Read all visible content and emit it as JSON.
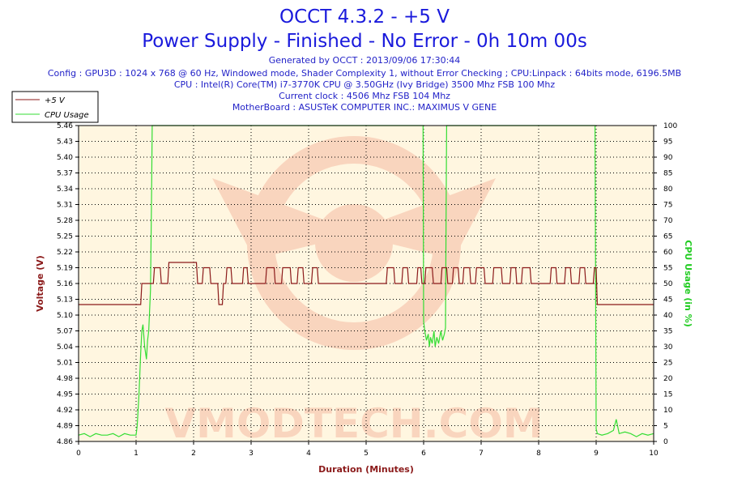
{
  "header": {
    "title": "OCCT 4.3.2 - +5 V",
    "subtitle": "Power Supply - Finished - No Error - 0h 10m 00s",
    "info_lines": [
      "Generated by OCCT : 2013/09/06 17:30:44",
      "Config : GPU3D : 1024 x 768 @ 60 Hz, Windowed mode, Shader Complexity 1, without Error Checking ; CPU:Linpack : 64bits mode, 6196.5MB",
      "CPU : Intel(R) Core(TM) i7-3770K CPU @ 3.50GHz (Ivy Bridge) 3500 Mhz FSB 100 Mhz",
      "Current clock : 4506 Mhz FSB 104 Mhz",
      "MotherBoard : ASUSTeK COMPUTER INC.: MAXIMUS V GENE"
    ]
  },
  "watermark": {
    "text": "VMODTECH.COM"
  },
  "colors": {
    "voltage": "#8b1a1a",
    "cpu": "#33dd33",
    "plot_bg": "#fff6e0",
    "title": "#1a1adc",
    "watermark": "#e8624a"
  },
  "chart_data": {
    "type": "line",
    "xlabel": "Duration (Minutes)",
    "ylabel": "Voltage (V)",
    "y2label": "CPU Usage (in %)",
    "xlim": [
      0,
      10
    ],
    "ylim": [
      4.86,
      5.46
    ],
    "y2lim": [
      0,
      100
    ],
    "x_ticks": [
      0,
      1,
      2,
      3,
      4,
      5,
      6,
      7,
      8,
      9,
      10
    ],
    "y_ticks": [
      "4.86",
      "4.89",
      "4.92",
      "4.95",
      "4.98",
      "5.01",
      "5.04",
      "5.07",
      "5.10",
      "5.13",
      "5.16",
      "5.19",
      "5.22",
      "5.25",
      "5.28",
      "5.31",
      "5.34",
      "5.37",
      "5.40",
      "5.43",
      "5.46"
    ],
    "y2_ticks": [
      0,
      5,
      10,
      15,
      20,
      25,
      30,
      35,
      40,
      45,
      50,
      55,
      60,
      65,
      70,
      75,
      80,
      85,
      90,
      95,
      100
    ],
    "grid": true,
    "legend_position": "top-left",
    "series": [
      {
        "name": "+5 V",
        "axis": "left",
        "x": [
          0,
          1.08,
          1.1,
          1.3,
          1.32,
          1.42,
          1.44,
          1.55,
          1.57,
          2.05,
          2.07,
          2.15,
          2.17,
          2.28,
          2.3,
          2.42,
          2.44,
          2.5,
          2.52,
          2.56,
          2.58,
          2.65,
          2.67,
          2.85,
          2.87,
          2.93,
          2.95,
          3.25,
          3.27,
          3.4,
          3.42,
          3.53,
          3.55,
          3.68,
          3.7,
          3.8,
          3.82,
          3.9,
          3.92,
          4.05,
          4.07,
          4.15,
          4.17,
          4.3,
          4.32,
          5.0,
          5.02,
          5.35,
          5.37,
          5.48,
          5.5,
          5.62,
          5.64,
          5.72,
          5.74,
          5.88,
          5.9,
          5.95,
          5.97,
          6.02,
          6.04,
          6.15,
          6.17,
          6.3,
          6.32,
          6.4,
          6.42,
          6.5,
          6.52,
          6.6,
          6.62,
          6.68,
          6.7,
          6.8,
          6.82,
          6.9,
          6.92,
          7.05,
          7.07,
          7.2,
          7.22,
          7.35,
          7.37,
          7.5,
          7.52,
          7.6,
          7.62,
          7.7,
          7.72,
          7.85,
          7.87,
          8.2,
          8.22,
          8.3,
          8.32,
          8.45,
          8.47,
          8.55,
          8.57,
          8.7,
          8.72,
          8.8,
          8.82,
          8.95,
          8.97,
          9.0,
          9.02,
          10.0
        ],
        "values": [
          5.12,
          5.12,
          5.16,
          5.16,
          5.19,
          5.19,
          5.16,
          5.16,
          5.2,
          5.2,
          5.16,
          5.16,
          5.19,
          5.19,
          5.16,
          5.16,
          5.12,
          5.12,
          5.16,
          5.16,
          5.19,
          5.19,
          5.16,
          5.16,
          5.19,
          5.19,
          5.16,
          5.16,
          5.19,
          5.19,
          5.16,
          5.16,
          5.19,
          5.19,
          5.16,
          5.16,
          5.19,
          5.19,
          5.16,
          5.16,
          5.19,
          5.19,
          5.16,
          5.16,
          5.16,
          5.16,
          5.16,
          5.16,
          5.19,
          5.19,
          5.16,
          5.16,
          5.19,
          5.19,
          5.16,
          5.16,
          5.19,
          5.19,
          5.16,
          5.16,
          5.19,
          5.19,
          5.16,
          5.16,
          5.19,
          5.19,
          5.16,
          5.16,
          5.19,
          5.19,
          5.16,
          5.16,
          5.19,
          5.19,
          5.16,
          5.16,
          5.19,
          5.19,
          5.16,
          5.16,
          5.19,
          5.19,
          5.16,
          5.16,
          5.19,
          5.19,
          5.16,
          5.16,
          5.19,
          5.19,
          5.16,
          5.16,
          5.19,
          5.19,
          5.16,
          5.16,
          5.19,
          5.19,
          5.16,
          5.16,
          5.19,
          5.19,
          5.16,
          5.16,
          5.19,
          5.19,
          5.12,
          5.12
        ]
      },
      {
        "name": "CPU Usage",
        "axis": "right",
        "x": [
          0,
          0.1,
          0.2,
          0.3,
          0.4,
          0.5,
          0.6,
          0.7,
          0.8,
          0.9,
          1.0,
          1.02,
          1.05,
          1.08,
          1.1,
          1.12,
          1.15,
          1.18,
          1.2,
          1.22,
          1.25,
          1.27,
          1.28,
          5.99,
          6.0,
          6.02,
          6.05,
          6.08,
          6.1,
          6.12,
          6.15,
          6.18,
          6.2,
          6.23,
          6.26,
          6.3,
          6.33,
          6.36,
          6.38,
          6.39,
          6.4,
          8.98,
          9.0,
          9.02,
          9.1,
          9.2,
          9.3,
          9.35,
          9.4,
          9.5,
          9.6,
          9.7,
          9.8,
          9.9,
          10.0
        ],
        "values": [
          2,
          2.5,
          1.5,
          2.5,
          2,
          2,
          2.5,
          1.5,
          2.5,
          2,
          2,
          5,
          15,
          28,
          35,
          37,
          30,
          26,
          32,
          35,
          48,
          80,
          100,
          100,
          38,
          35,
          32,
          34,
          30,
          33,
          31,
          35,
          30,
          33,
          31,
          35,
          32,
          34,
          36,
          70,
          100,
          100,
          4,
          2.5,
          2,
          2.5,
          3.5,
          7,
          2.5,
          3,
          2.5,
          1.5,
          2.5,
          2,
          2.5
        ]
      }
    ]
  }
}
